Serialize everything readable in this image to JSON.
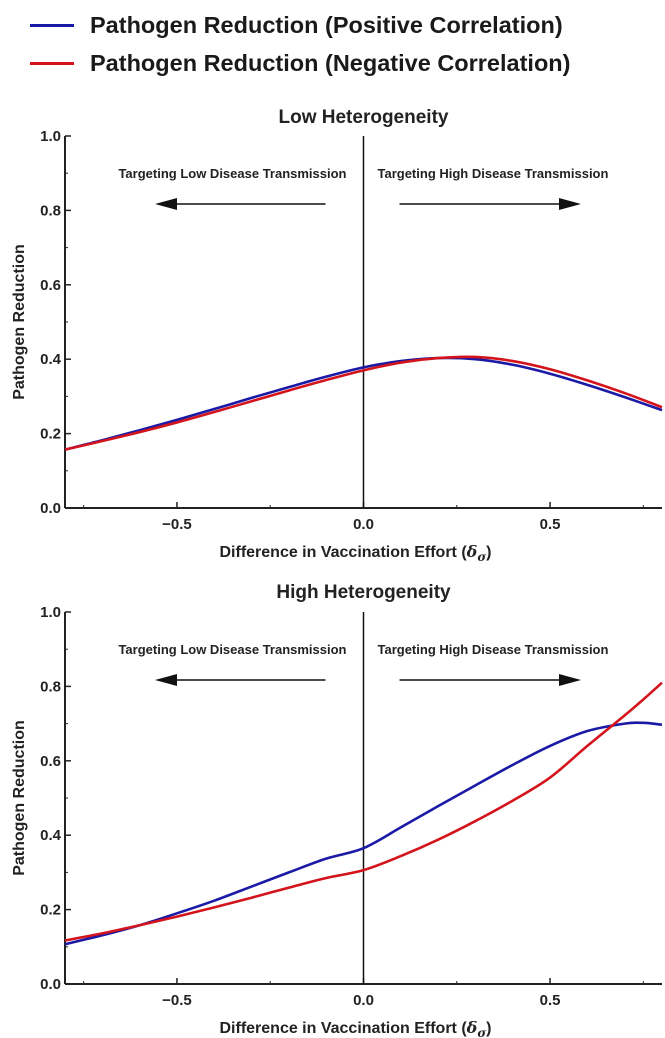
{
  "legend": [
    {
      "name": "Pathogen Reduction (Positive Correlation)",
      "color": "#1a1aa6"
    },
    {
      "name": "Pathogen Reduction (Negative Correlation)",
      "color": "#d4141c"
    }
  ],
  "chart_data": [
    {
      "type": "line",
      "title": "Low Heterogeneity",
      "xlabel": "Difference in Vaccination Effort (δσ)",
      "ylabel": "Pathogen Reduction",
      "xlim": [
        -0.8,
        0.8
      ],
      "ylim": [
        0,
        1.0
      ],
      "xticks": [
        "−0.5",
        "0.0",
        "0.5"
      ],
      "yticks": [
        "0.0",
        "0.2",
        "0.4",
        "0.6",
        "0.8",
        "1.0"
      ],
      "annotations": {
        "left": "Targeting Low Disease Transmission",
        "right": "Targeting High Disease Transmission"
      },
      "x": [
        -0.8,
        -0.7,
        -0.6,
        -0.5,
        -0.4,
        -0.3,
        -0.2,
        -0.1,
        0.0,
        0.1,
        0.2,
        0.3,
        0.4,
        0.5,
        0.6,
        0.7,
        0.8
      ],
      "series": [
        {
          "name": "Pathogen Reduction (Positive Correlation)",
          "values": [
            0.157,
            0.182,
            0.209,
            0.237,
            0.266,
            0.296,
            0.325,
            0.353,
            0.378,
            0.395,
            0.403,
            0.4,
            0.385,
            0.361,
            0.331,
            0.298,
            0.263
          ]
        },
        {
          "name": "Pathogen Reduction (Negative Correlation)",
          "values": [
            0.157,
            0.18,
            0.204,
            0.23,
            0.258,
            0.287,
            0.316,
            0.344,
            0.37,
            0.391,
            0.403,
            0.406,
            0.395,
            0.373,
            0.343,
            0.309,
            0.271
          ]
        }
      ]
    },
    {
      "type": "line",
      "title": "High Heterogeneity",
      "xlabel": "Difference in Vaccination Effort (δσ)",
      "ylabel": "Pathogen Reduction",
      "xlim": [
        -0.8,
        0.8
      ],
      "ylim": [
        0,
        1.0
      ],
      "xticks": [
        "−0.5",
        "0.0",
        "0.5"
      ],
      "yticks": [
        "0.0",
        "0.2",
        "0.4",
        "0.6",
        "0.8",
        "1.0"
      ],
      "annotations": {
        "left": "Targeting Low Disease Transmission",
        "right": "Targeting High Disease Transmission"
      },
      "x": [
        -0.8,
        -0.7,
        -0.6,
        -0.5,
        -0.4,
        -0.3,
        -0.2,
        -0.1,
        0.0,
        0.1,
        0.2,
        0.3,
        0.4,
        0.5,
        0.6,
        0.7,
        0.75,
        0.8
      ],
      "series": [
        {
          "name": "Pathogen Reduction (Positive Correlation)",
          "values": [
            0.107,
            0.131,
            0.158,
            0.19,
            0.224,
            0.262,
            0.3,
            0.337,
            0.365,
            0.421,
            0.478,
            0.534,
            0.589,
            0.64,
            0.68,
            0.7,
            0.702,
            0.697
          ]
        },
        {
          "name": "Pathogen Reduction (Negative Correlation)",
          "values": [
            0.117,
            0.136,
            0.158,
            0.181,
            0.206,
            0.232,
            0.259,
            0.285,
            0.306,
            0.344,
            0.388,
            0.438,
            0.493,
            0.555,
            0.64,
            0.722,
            0.765,
            0.81
          ]
        }
      ]
    }
  ]
}
